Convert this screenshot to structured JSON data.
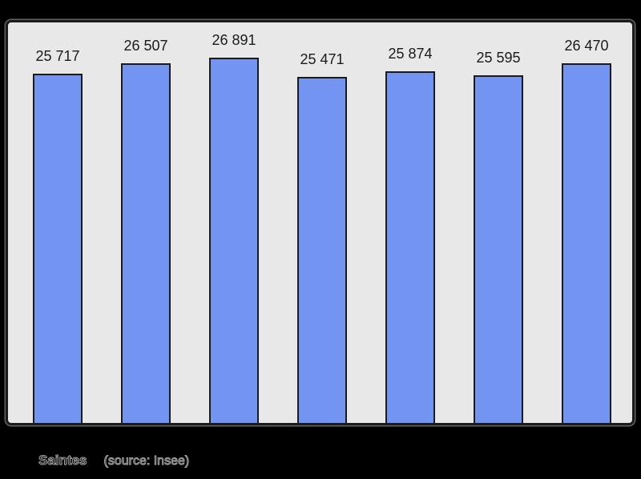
{
  "window": {
    "background": "#000000"
  },
  "chart_data": {
    "type": "bar",
    "title": "",
    "values": [
      25717,
      26507,
      26891,
      25471,
      25874,
      25595,
      26470
    ],
    "bar_labels": [
      "25 717",
      "26 507",
      "26 891",
      "25 471",
      "25 874",
      "25 595",
      "26 470"
    ],
    "ylim": [
      0,
      29500
    ],
    "grid": false,
    "legend_position": "none",
    "axes_visible": false,
    "colors": {
      "bar_fill": "#7494f2",
      "bar_border": "#1b1b1b",
      "plot_background": "#e8e8e8",
      "frame_border": "#1b1b1b",
      "label_text": "#1a1a1a",
      "caption_text": "#a2a2a2",
      "page_background": "#000000"
    }
  },
  "footer": {
    "name": "Saintes",
    "source_label": "(source: Insee)"
  }
}
